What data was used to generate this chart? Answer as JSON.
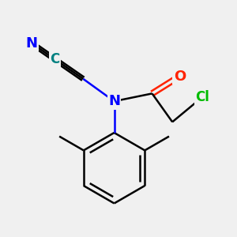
{
  "background_color": "#f0f0f0",
  "atom_colors": {
    "N": "#0000ff",
    "O": "#ff2200",
    "Cl": "#00bb00",
    "C_nitrile": "#008080",
    "default": "#000000"
  },
  "bond_color": "#000000",
  "bond_width": 1.8,
  "figsize": [
    3.0,
    3.0
  ],
  "dpi": 100
}
